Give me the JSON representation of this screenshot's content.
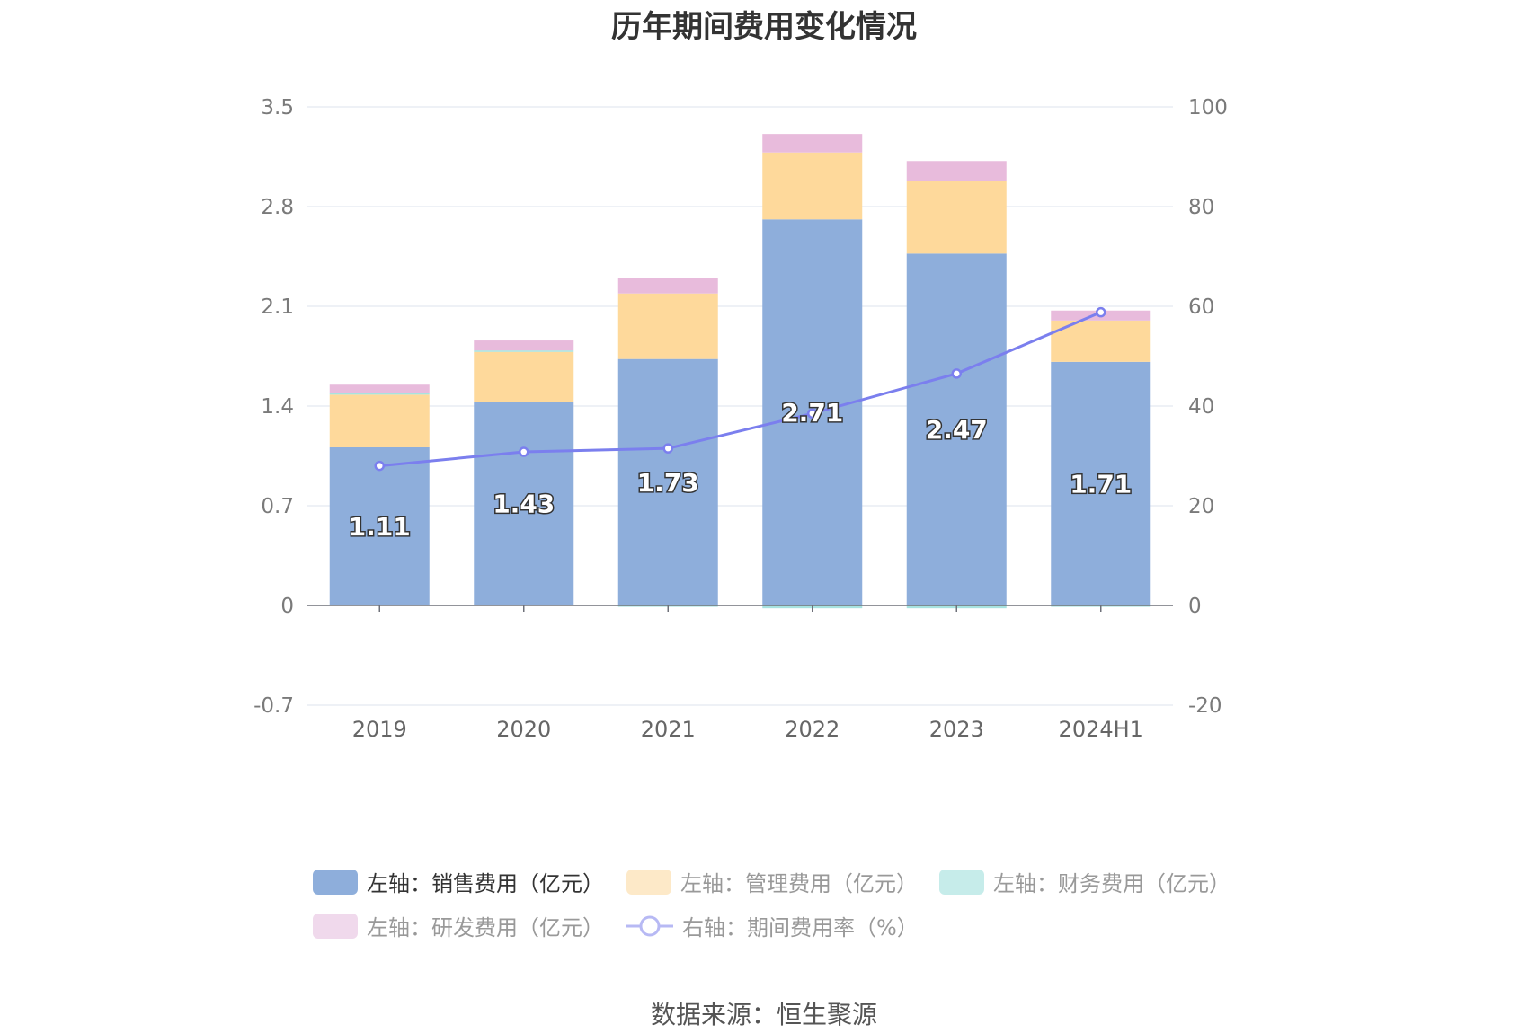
{
  "chart_data": {
    "type": "bar",
    "title": "历年期间费用变化情况",
    "categories": [
      "2019",
      "2020",
      "2021",
      "2022",
      "2023",
      "2024H1"
    ],
    "stacked": true,
    "series": [
      {
        "name": "左轴：销售费用（亿元）",
        "axis": "left",
        "type": "bar",
        "color": "#8eaedb",
        "values": [
          1.11,
          1.43,
          1.73,
          2.71,
          2.47,
          1.71
        ],
        "labels": [
          "1.11",
          "1.43",
          "1.73",
          "2.71",
          "2.47",
          "1.71"
        ]
      },
      {
        "name": "左轴：管理费用（亿元）",
        "axis": "left",
        "type": "bar",
        "color": "#fed99b",
        "values": [
          0.37,
          0.35,
          0.46,
          0.47,
          0.51,
          0.29
        ]
      },
      {
        "name": "左轴：财务费用（亿元）",
        "axis": "left",
        "type": "bar",
        "color": "#a7e3e0",
        "values": [
          0.01,
          0.01,
          -0.01,
          -0.02,
          -0.02,
          -0.01
        ]
      },
      {
        "name": "左轴：研发费用（亿元）",
        "axis": "left",
        "type": "bar",
        "color": "#e8bbdc",
        "values": [
          0.06,
          0.07,
          0.11,
          0.13,
          0.14,
          0.07
        ]
      },
      {
        "name": "右轴：期间费用率（%）",
        "axis": "right",
        "type": "line",
        "color": "#7b7fee",
        "values": [
          28.0,
          30.8,
          31.5,
          38.5,
          46.5,
          58.8
        ]
      }
    ],
    "left_axis": {
      "ylim": [
        -0.7,
        3.5
      ],
      "ticks": [
        "-0.7",
        "0",
        "0.7",
        "1.4",
        "2.1",
        "2.8",
        "3.5"
      ]
    },
    "right_axis": {
      "ylim": [
        -20,
        100
      ],
      "ticks": [
        "-20",
        "0",
        "20",
        "40",
        "60",
        "80",
        "100"
      ]
    },
    "grid": true,
    "legend_placement": "bottom"
  },
  "legend": {
    "sales": "左轴：销售费用（亿元）",
    "admin": "左轴：管理费用（亿元）",
    "finance": "左轴：财务费用（亿元）",
    "rd": "左轴：研发费用（亿元）",
    "rate": "右轴：期间费用率（%）"
  },
  "source": "数据来源：恒生聚源"
}
